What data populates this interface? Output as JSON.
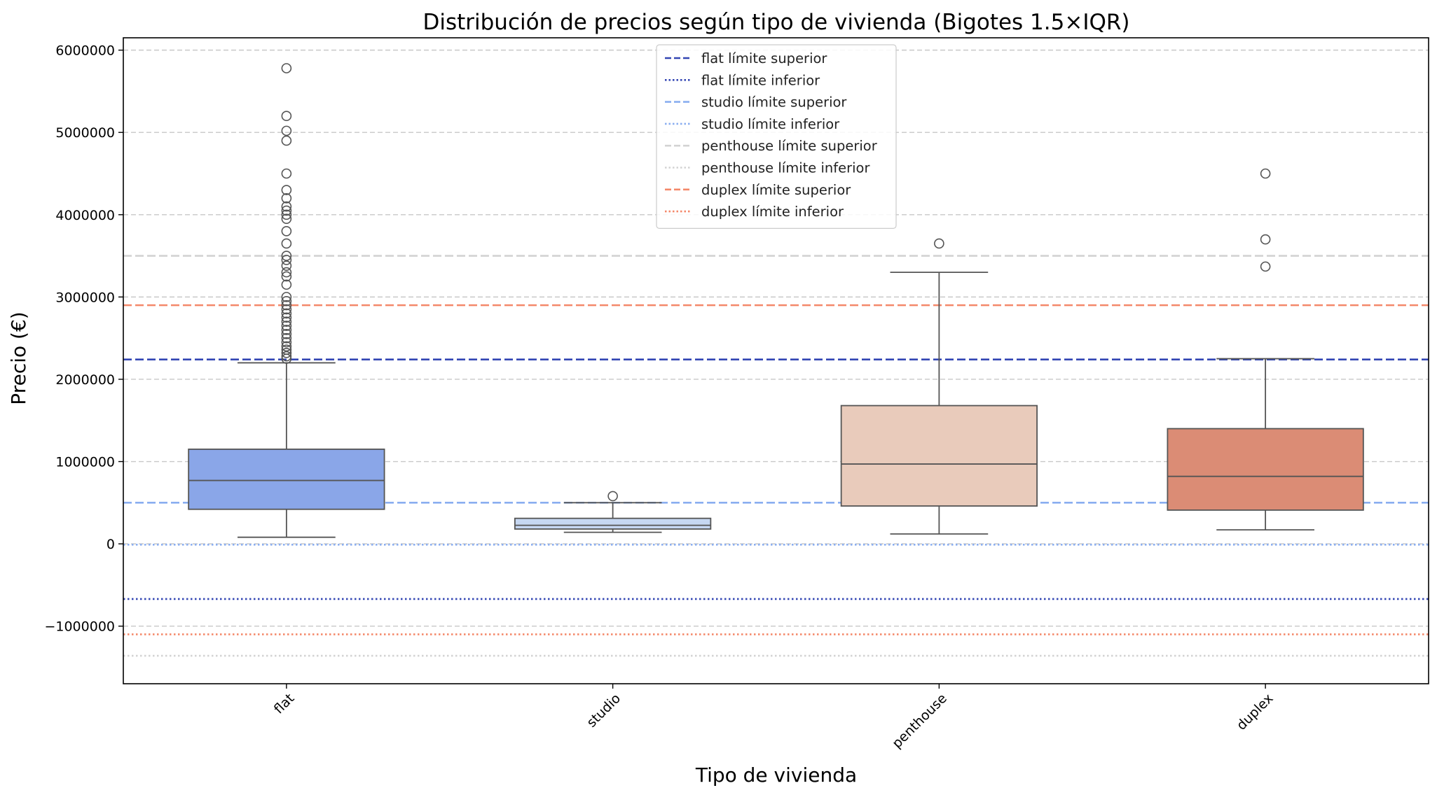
{
  "chart_data": {
    "type": "box",
    "title": "Distribución de precios según tipo de vivienda (Bigotes 1.5×IQR)",
    "xlabel": "Tipo de vivienda",
    "ylabel": "Precio (€)",
    "ylim": [
      -1700000,
      6150000
    ],
    "yticks": [
      6000000,
      5000000,
      4000000,
      3000000,
      2000000,
      1000000,
      0,
      -1000000
    ],
    "ytick_labels": [
      "6000000",
      "5000000",
      "4000000",
      "3000000",
      "2000000",
      "1000000",
      "0",
      "−1000000"
    ],
    "grid": "y-dashed",
    "legend_position": "top-center",
    "categories": [
      "flat",
      "studio",
      "penthouse",
      "duplex"
    ],
    "boxes": [
      {
        "category": "flat",
        "color": "#8aa6e8",
        "whisker_low": 80000,
        "q1": 420000,
        "median": 770000,
        "q3": 1150000,
        "whisker_high": 2200000,
        "outliers": [
          2250000,
          2280000,
          2320000,
          2360000,
          2400000,
          2450000,
          2500000,
          2550000,
          2600000,
          2650000,
          2700000,
          2750000,
          2800000,
          2850000,
          2900000,
          2950000,
          3000000,
          3150000,
          3250000,
          3300000,
          3380000,
          3450000,
          3500000,
          3650000,
          3800000,
          3950000,
          4000000,
          4050000,
          4100000,
          4200000,
          4300000,
          4500000,
          4900000,
          5020000,
          5200000,
          5780000
        ]
      },
      {
        "category": "studio",
        "color": "#c6d7f2",
        "whisker_low": 140000,
        "q1": 180000,
        "median": 225000,
        "q3": 310000,
        "whisker_high": 500000,
        "outliers": [
          580000
        ]
      },
      {
        "category": "penthouse",
        "color": "#e9cbbb",
        "whisker_low": 120000,
        "q1": 460000,
        "median": 970000,
        "q3": 1680000,
        "whisker_high": 3300000,
        "outliers": [
          3650000
        ]
      },
      {
        "category": "duplex",
        "color": "#db8c75",
        "whisker_low": 170000,
        "q1": 410000,
        "median": 820000,
        "q3": 1400000,
        "whisker_high": 2250000,
        "outliers": [
          3370000,
          3700000,
          4500000
        ]
      }
    ],
    "reference_lines": [
      {
        "label": "flat límite superior",
        "value": 2240000,
        "color": "#3346b3",
        "style": "dashed"
      },
      {
        "label": "flat límite inferior",
        "value": -670000,
        "color": "#3346b3",
        "style": "dotted"
      },
      {
        "label": "studio límite superior",
        "value": 500000,
        "color": "#8aaef0",
        "style": "dashed"
      },
      {
        "label": "studio límite inferior",
        "value": -10000,
        "color": "#8aaef0",
        "style": "dotted"
      },
      {
        "label": "penthouse límite superior",
        "value": 3500000,
        "color": "#d3d3d3",
        "style": "dashed"
      },
      {
        "label": "penthouse límite inferior",
        "value": -1360000,
        "color": "#d3d3d3",
        "style": "dotted"
      },
      {
        "label": "duplex límite superior",
        "value": 2900000,
        "color": "#f4886a",
        "style": "dashed"
      },
      {
        "label": "duplex límite inferior",
        "value": -1100000,
        "color": "#f4886a",
        "style": "dotted"
      }
    ]
  }
}
